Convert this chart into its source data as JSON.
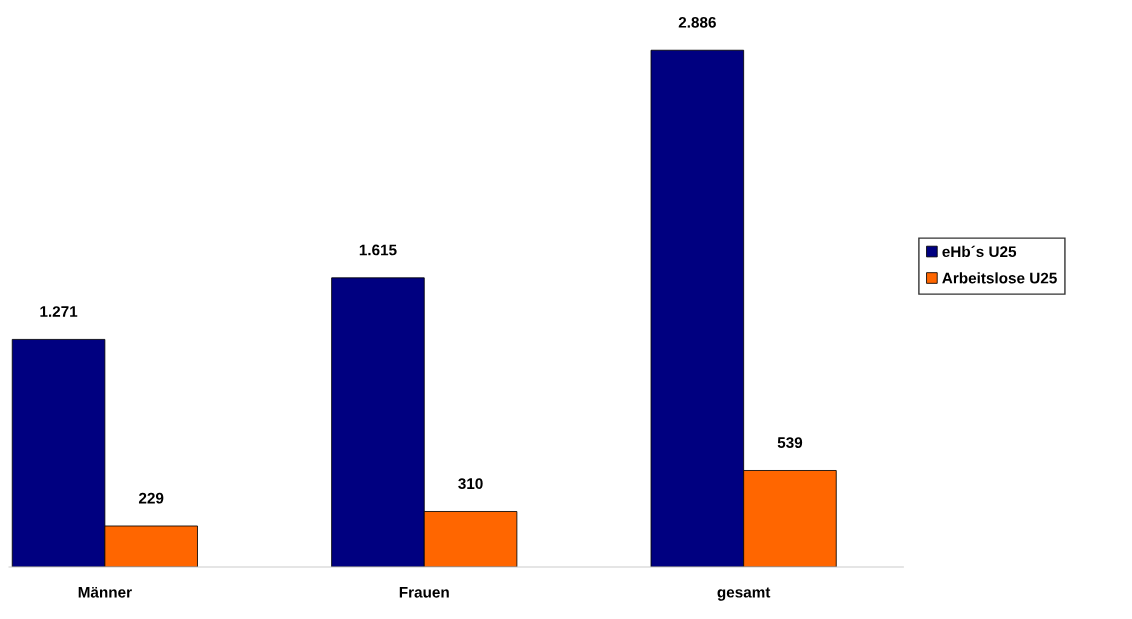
{
  "chart_data": {
    "type": "bar",
    "categories": [
      "Männer",
      "Frauen",
      "gesamt"
    ],
    "series": [
      {
        "name": "eHb´s U25",
        "color": "#000080",
        "values": [
          1271,
          1615,
          2886
        ],
        "value_labels": [
          "1.271",
          "1.615",
          "2.886"
        ]
      },
      {
        "name": "Arbeitslose U25",
        "color": "#ff6600",
        "values": [
          229,
          310,
          539
        ],
        "value_labels": [
          "229",
          "310",
          "539"
        ]
      }
    ],
    "legend": "right",
    "grid": false
  }
}
